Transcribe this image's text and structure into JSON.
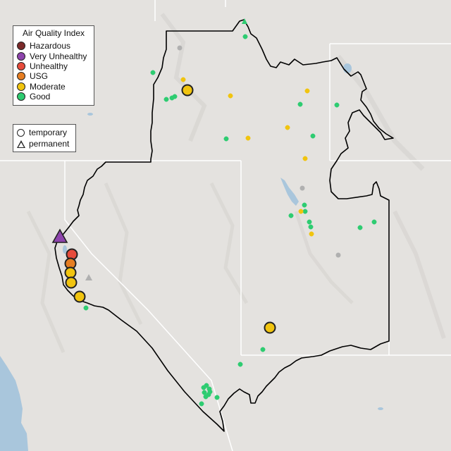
{
  "legend": {
    "title": "Air Quality Index",
    "categories": [
      {
        "label": "Hazardous",
        "color": "#7b2a2a"
      },
      {
        "label": "Very Unhealthy",
        "color": "#8e44ad"
      },
      {
        "label": "Unhealthy",
        "color": "#e74c3c"
      },
      {
        "label": "USG",
        "color": "#e67e22"
      },
      {
        "label": "Moderate",
        "color": "#f1c40f"
      },
      {
        "label": "Good",
        "color": "#2ecc71"
      }
    ],
    "types": [
      {
        "label": "temporary",
        "shape": "circle"
      },
      {
        "label": "permanent",
        "shape": "triangle"
      }
    ]
  },
  "colors": {
    "land": "#e4e2df",
    "water": "#a9c6dc",
    "state_line": "#ffffff",
    "region_outline": "#000000",
    "no_data": "#b0b0b0"
  }
}
